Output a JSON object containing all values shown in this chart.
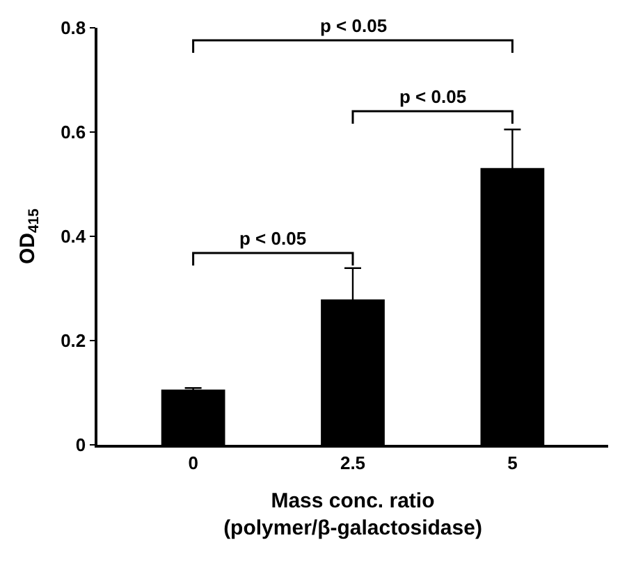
{
  "chart_data": {
    "type": "bar",
    "categories": [
      "0",
      "2.5",
      "5"
    ],
    "values": [
      0.106,
      0.279,
      0.531
    ],
    "color": "#000000",
    "errors": [
      0.003,
      0.06,
      0.074
    ],
    "ylabel": "OD$_{415}$",
    "xlabel": "Mass conc. ratio\n(polymer/β-galactosidase)",
    "ylim": [
      0,
      0.8
    ],
    "yticks": [
      0,
      0.2,
      0.4,
      0.6,
      0.8
    ],
    "annotations": [
      "p < 0.05",
      "p < 0.05",
      "p < 0.05"
    ]
  }
}
